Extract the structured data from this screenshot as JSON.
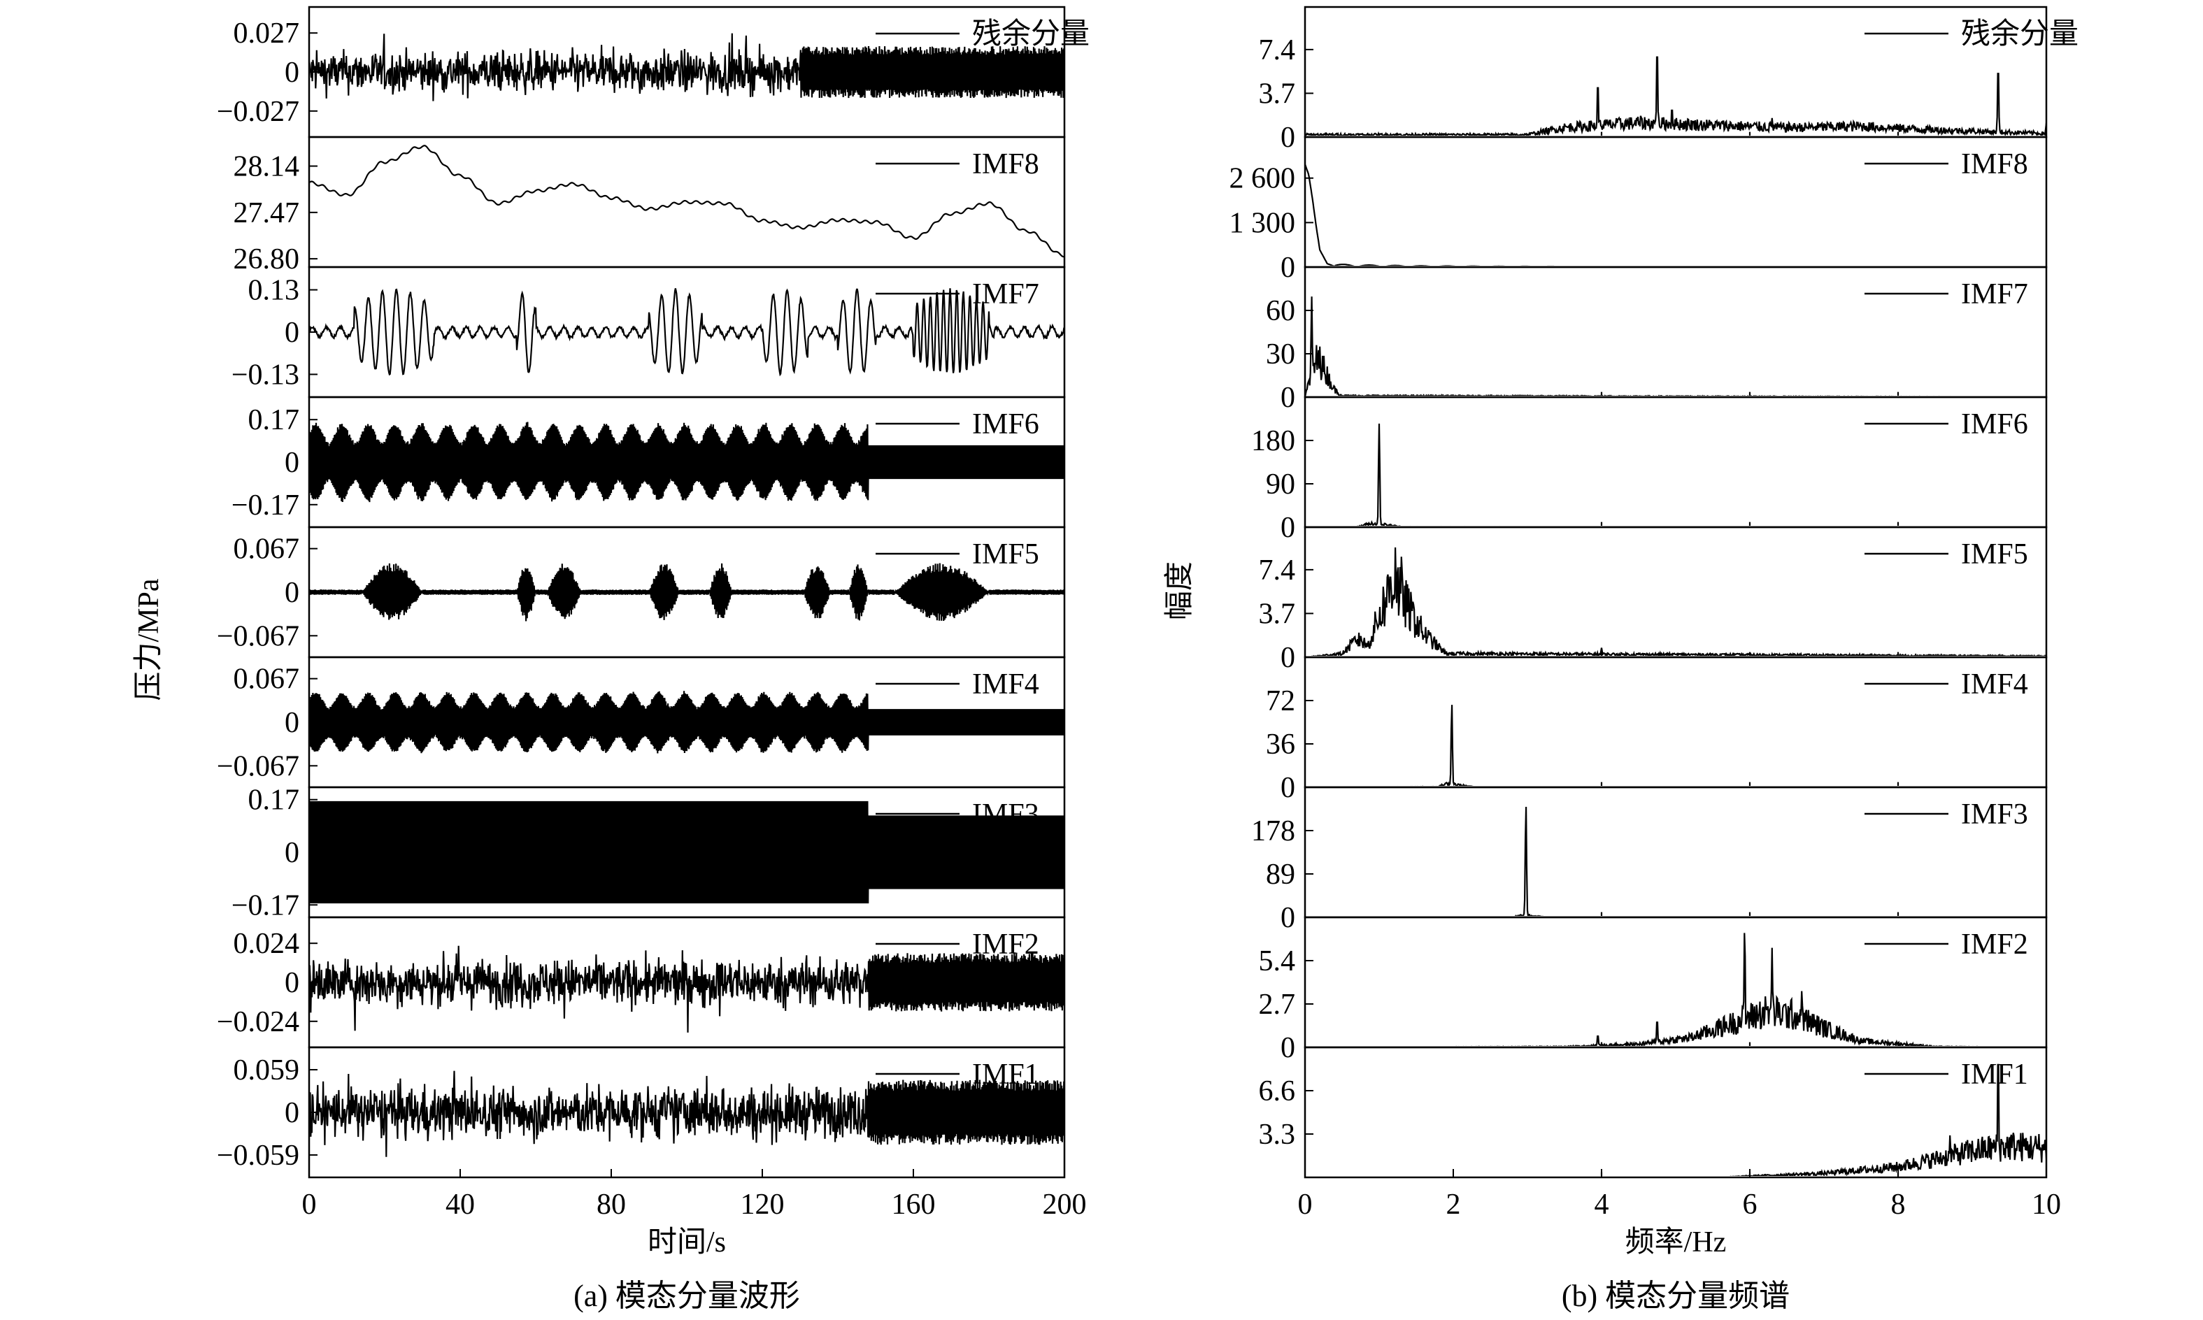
{
  "figure": {
    "left": {
      "ylabel": "压力/MPa",
      "xlabel": "时间/s",
      "caption": "(a) 模态分量波形",
      "xticks": [
        "0",
        "40",
        "80",
        "120",
        "160",
        "200"
      ],
      "xrange": [
        0,
        200
      ]
    },
    "right": {
      "ylabel": "幅度",
      "xlabel": "频率/Hz",
      "caption": "(b) 模态分量频谱",
      "xticks": [
        "0",
        "2",
        "4",
        "6",
        "8",
        "10"
      ],
      "xrange": [
        0,
        10
      ]
    }
  },
  "chart_data": [
    {
      "type": "line",
      "title": "",
      "xlabel": "时间/s",
      "ylabel": "压力/MPa",
      "xlim": [
        0,
        200
      ],
      "panels": [
        {
          "name": "残余分量",
          "yticks": [
            "0.027",
            "0",
            "−0.027"
          ],
          "tick_values": [
            0.027,
            0,
            -0.027
          ],
          "ylim": [
            -0.045,
            0.045
          ],
          "signal": "noise",
          "amplitude": 0.02,
          "dense_after": 130
        },
        {
          "name": "IMF8",
          "yticks": [
            "28.14",
            "27.47",
            "26.80"
          ],
          "tick_values": [
            28.14,
            27.47,
            26.8
          ],
          "ylim": [
            26.68,
            28.56
          ],
          "signal": "smooth",
          "x": [
            0,
            10,
            20,
            30,
            40,
            50,
            60,
            70,
            80,
            90,
            100,
            110,
            120,
            130,
            140,
            150,
            160,
            170,
            180,
            190,
            200
          ],
          "y": [
            27.9,
            27.72,
            28.2,
            28.42,
            28.0,
            27.6,
            27.78,
            27.88,
            27.68,
            27.52,
            27.62,
            27.6,
            27.35,
            27.25,
            27.36,
            27.33,
            27.1,
            27.45,
            27.6,
            27.2,
            26.85
          ]
        },
        {
          "name": "IMF7",
          "yticks": [
            "0.13",
            "0",
            "−0.13"
          ],
          "tick_values": [
            0.13,
            0,
            -0.13
          ],
          "ylim": [
            -0.2,
            0.2
          ],
          "signal": "bursts_lf",
          "amplitude": 0.13
        },
        {
          "name": "IMF6",
          "yticks": [
            "0.17",
            "0",
            "−0.17"
          ],
          "tick_values": [
            0.17,
            0,
            -0.17
          ],
          "ylim": [
            -0.26,
            0.26
          ],
          "signal": "dense",
          "amplitude": 0.15,
          "dense_after": 148
        },
        {
          "name": "IMF5",
          "yticks": [
            "0.067",
            "0",
            "−0.067"
          ],
          "tick_values": [
            0.067,
            0,
            -0.067
          ],
          "ylim": [
            -0.1,
            0.1
          ],
          "signal": "bursts_hf",
          "amplitude": 0.045
        },
        {
          "name": "IMF4",
          "yticks": [
            "0.067",
            "0",
            "−0.067"
          ],
          "tick_values": [
            0.067,
            0,
            -0.067
          ],
          "ylim": [
            -0.1,
            0.1
          ],
          "signal": "dense",
          "amplitude": 0.045,
          "dense_after": 148
        },
        {
          "name": "IMF3",
          "yticks": [
            "0.17",
            "0",
            "−0.17"
          ],
          "tick_values": [
            0.17,
            0,
            -0.17
          ],
          "ylim": [
            -0.21,
            0.21
          ],
          "signal": "solid",
          "amplitude": 0.165,
          "dense_after": 148
        },
        {
          "name": "IMF2",
          "yticks": [
            "0.024",
            "0",
            "−0.024"
          ],
          "tick_values": [
            0.024,
            0,
            -0.024
          ],
          "ylim": [
            -0.04,
            0.04
          ],
          "signal": "noise",
          "amplitude": 0.02,
          "dense_after": 148
        },
        {
          "name": "IMF1",
          "yticks": [
            "0.059",
            "0",
            "−0.059"
          ],
          "tick_values": [
            0.059,
            0,
            -0.059
          ],
          "ylim": [
            -0.09,
            0.09
          ],
          "signal": "noise",
          "amplitude": 0.05,
          "dense_after": 148
        }
      ]
    },
    {
      "type": "line",
      "title": "",
      "xlabel": "频率/Hz",
      "ylabel": "幅度",
      "xlim": [
        0,
        10
      ],
      "panels": [
        {
          "name": "残余分量",
          "yticks": [
            "7.4",
            "3.7",
            "0"
          ],
          "tick_values": [
            7.4,
            3.7,
            0
          ],
          "ylim": [
            0,
            11
          ],
          "baseline": [
            [
              0,
              0.2
            ],
            [
              3,
              0.2
            ],
            [
              3.5,
              0.8
            ],
            [
              4.5,
              1.2
            ],
            [
              5.5,
              1.0
            ],
            [
              6.5,
              0.8
            ],
            [
              7.5,
              0.9
            ],
            [
              8.5,
              0.6
            ],
            [
              10,
              0.3
            ]
          ],
          "peaks": [
            {
              "x": 3.95,
              "y": 4.8
            },
            {
              "x": 4.75,
              "y": 7.8
            },
            {
              "x": 4.95,
              "y": 2.6
            },
            {
              "x": 6.3,
              "y": 1.6
            },
            {
              "x": 9.35,
              "y": 6.2
            },
            {
              "x": 10.0,
              "y": 1.2
            }
          ]
        },
        {
          "name": "IMF8",
          "yticks": [
            "2 600",
            "1 300",
            "0"
          ],
          "tick_values": [
            2600,
            1300,
            0
          ],
          "ylim": [
            0,
            3800
          ],
          "decay": {
            "x": [
              0,
              0.05,
              0.1,
              0.15,
              0.2,
              0.3,
              0.4
            ],
            "y": [
              3000,
              2700,
              2000,
              1200,
              500,
              100,
              20
            ]
          }
        },
        {
          "name": "IMF7",
          "yticks": [
            "60",
            "30",
            "0"
          ],
          "tick_values": [
            60,
            30,
            0
          ],
          "ylim": [
            0,
            90
          ],
          "baseline": [
            [
              0,
              0
            ],
            [
              0.05,
              10
            ],
            [
              0.15,
              25
            ],
            [
              0.25,
              20
            ],
            [
              0.4,
              5
            ],
            [
              0.5,
              1
            ],
            [
              10,
              0.2
            ]
          ],
          "peaks": [
            {
              "x": 0.09,
              "y": 70
            },
            {
              "x": 0.2,
              "y": 35
            }
          ]
        },
        {
          "name": "IMF6",
          "yticks": [
            "180",
            "90",
            "0"
          ],
          "tick_values": [
            180,
            90,
            0
          ],
          "ylim": [
            0,
            270
          ],
          "baseline": [
            [
              0,
              0
            ],
            [
              0.7,
              1
            ],
            [
              0.9,
              8
            ],
            [
              1.1,
              5
            ],
            [
              1.3,
              1
            ],
            [
              10,
              0
            ]
          ],
          "peaks": [
            {
              "x": 1.0,
              "y": 215
            }
          ]
        },
        {
          "name": "IMF5",
          "yticks": [
            "7.4",
            "3.7",
            "0"
          ],
          "tick_values": [
            7.4,
            3.7,
            0
          ],
          "ylim": [
            0,
            11
          ],
          "baseline": [
            [
              0,
              0
            ],
            [
              0.5,
              0.3
            ],
            [
              0.7,
              1.5
            ],
            [
              0.85,
              1.0
            ],
            [
              1.0,
              3.5
            ],
            [
              1.2,
              6.5
            ],
            [
              1.4,
              4.0
            ],
            [
              1.6,
              2.0
            ],
            [
              1.9,
              0.3
            ],
            [
              10,
              0.1
            ]
          ],
          "peaks": [
            {
              "x": 1.22,
              "y": 9.5
            },
            {
              "x": 1.3,
              "y": 8.5
            },
            {
              "x": 1.15,
              "y": 7.8
            },
            {
              "x": 1.45,
              "y": 4.5
            },
            {
              "x": 0.75,
              "y": 2.0
            },
            {
              "x": 4.0,
              "y": 0.8
            }
          ]
        },
        {
          "name": "IMF4",
          "yticks": [
            "72",
            "36",
            "0"
          ],
          "tick_values": [
            72,
            36,
            0
          ],
          "ylim": [
            0,
            108
          ],
          "baseline": [
            [
              0,
              0
            ],
            [
              1.8,
              0.5
            ],
            [
              1.95,
              4
            ],
            [
              2.05,
              2
            ],
            [
              2.3,
              0.2
            ],
            [
              10,
              0
            ]
          ],
          "peaks": [
            {
              "x": 1.98,
              "y": 70
            }
          ]
        },
        {
          "name": "IMF3",
          "yticks": [
            "178",
            "89",
            "0"
          ],
          "tick_values": [
            178,
            89,
            0
          ],
          "ylim": [
            0,
            267
          ],
          "baseline": [
            [
              0,
              0
            ],
            [
              2.8,
              0.5
            ],
            [
              2.95,
              6
            ],
            [
              3.05,
              3
            ],
            [
              3.3,
              0.2
            ],
            [
              10,
              0
            ]
          ],
          "peaks": [
            {
              "x": 2.98,
              "y": 232
            }
          ]
        },
        {
          "name": "IMF2",
          "yticks": [
            "5.4",
            "2.7",
            "0"
          ],
          "tick_values": [
            5.4,
            2.7,
            0
          ],
          "ylim": [
            0,
            8.1
          ],
          "baseline": [
            [
              0,
              0
            ],
            [
              3.5,
              0.05
            ],
            [
              4.5,
              0.2
            ],
            [
              5.2,
              0.6
            ],
            [
              5.7,
              1.4
            ],
            [
              6.2,
              2.2
            ],
            [
              6.6,
              2.0
            ],
            [
              7.0,
              1.2
            ],
            [
              7.5,
              0.4
            ],
            [
              8.5,
              0.05
            ],
            [
              10,
              0
            ]
          ],
          "peaks": [
            {
              "x": 5.93,
              "y": 7.5
            },
            {
              "x": 6.3,
              "y": 6.2
            },
            {
              "x": 4.75,
              "y": 1.8
            },
            {
              "x": 3.95,
              "y": 0.8
            },
            {
              "x": 6.7,
              "y": 3.5
            }
          ]
        },
        {
          "name": "IMF1",
          "yticks": [
            "6.6",
            "3.3"
          ],
          "tick_values": [
            6.6,
            3.3
          ],
          "ylim": [
            0,
            9.9
          ],
          "baseline": [
            [
              0,
              0
            ],
            [
              5.5,
              0
            ],
            [
              7.0,
              0.3
            ],
            [
              8.0,
              0.8
            ],
            [
              8.6,
              1.5
            ],
            [
              9.0,
              2.0
            ],
            [
              9.5,
              2.4
            ],
            [
              10,
              2.2
            ]
          ],
          "peaks": [
            {
              "x": 9.35,
              "y": 9.9
            },
            {
              "x": 8.7,
              "y": 3.2
            },
            {
              "x": 9.9,
              "y": 3.3
            }
          ]
        }
      ]
    }
  ]
}
